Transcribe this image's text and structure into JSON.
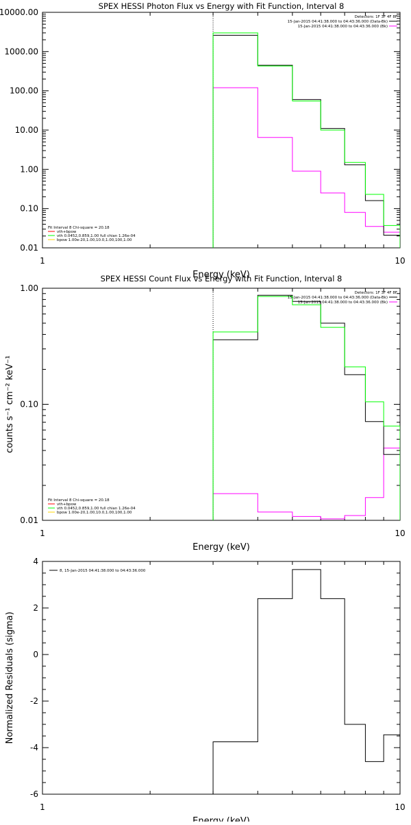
{
  "colors": {
    "background": "#ffffff",
    "axes": "#000000",
    "data": "#000000",
    "fit_total": "#ff00ff",
    "vth": "#00ff00",
    "bpow": "#ffd700",
    "vth_bpow_label": "#ff0000"
  },
  "chart_data": [
    {
      "id": "photon",
      "type": "line",
      "title": "SPEX HESSI Photon Flux vs Energy with Fit Function, Interval 8",
      "xlabel": "Energy (keV)",
      "ylabel": "",
      "xscale": "log",
      "yscale": "log",
      "xlim": [
        1,
        10
      ],
      "ylim": [
        0.01,
        10000
      ],
      "xticks": [
        {
          "v": 1,
          "label": "1"
        },
        {
          "v": 10,
          "label": "10"
        }
      ],
      "yticks": [
        {
          "v": 0.01,
          "label": "0.01"
        },
        {
          "v": 0.1,
          "label": "0.10"
        },
        {
          "v": 1,
          "label": "1.00"
        },
        {
          "v": 10,
          "label": "10.00"
        },
        {
          "v": 100,
          "label": "100.00"
        },
        {
          "v": 1000,
          "label": "1000.00"
        },
        {
          "v": 10000,
          "label": "10000.00"
        }
      ],
      "vline_x": 3,
      "edges": [
        3,
        4,
        5,
        6,
        7,
        8,
        9,
        10
      ],
      "series": [
        {
          "key": "data",
          "values": [
            2600,
            450,
            60,
            11,
            1.3,
            0.16,
            0.021
          ]
        },
        {
          "key": "vth",
          "values": [
            3000,
            430,
            55,
            10,
            1.5,
            0.23,
            0.037
          ]
        },
        {
          "key": "fit_total",
          "values": [
            120,
            6.5,
            0.9,
            0.25,
            0.08,
            0.035,
            0.025
          ]
        }
      ],
      "legend_top": {
        "header": "Detectors: 1F 3F 4F 8F",
        "entries": [
          {
            "key": "data",
            "label": "15-Jan-2015 04:41:38.000 to 04:43:36.000 (Data-Bk)"
          },
          {
            "key": "fit_total",
            "label": "15-Jan-2015 04:41:38.000 to 04:43:36.000 (Bk)"
          }
        ]
      },
      "legend_bottom": {
        "header": "Fit Interval  8    Chi-square = 20.18",
        "entries": [
          {
            "key": "vth_bpow_label",
            "label": "vth+bpow"
          },
          {
            "key": "vth",
            "label": "vth 0.0452,0.859,1.00   full chian 1.26e-04"
          },
          {
            "key": "bpow",
            "label": "bpow 1.00e-20,1.00,10.0,1.00,100,1.00"
          }
        ]
      }
    },
    {
      "id": "count",
      "type": "line",
      "title": "SPEX HESSI Count Flux vs Energy with Fit Function, Interval 8",
      "xlabel": "Energy (keV)",
      "ylabel": "counts s⁻¹ cm⁻² keV⁻¹",
      "xscale": "log",
      "yscale": "log",
      "xlim": [
        1,
        10
      ],
      "ylim": [
        0.01,
        1
      ],
      "xticks": [
        {
          "v": 1,
          "label": "1"
        },
        {
          "v": 10,
          "label": "10"
        }
      ],
      "yticks": [
        {
          "v": 0.01,
          "label": "0.01"
        },
        {
          "v": 0.1,
          "label": "0.10"
        },
        {
          "v": 1,
          "label": "1.00"
        }
      ],
      "vline_x": 3,
      "edges": [
        3,
        4,
        5,
        6,
        7,
        8,
        9,
        10
      ],
      "series": [
        {
          "key": "data",
          "values": [
            0.36,
            0.87,
            0.77,
            0.5,
            0.18,
            0.071,
            0.037
          ]
        },
        {
          "key": "vth",
          "values": [
            0.42,
            0.85,
            0.72,
            0.46,
            0.21,
            0.105,
            0.065
          ]
        },
        {
          "key": "fit_total",
          "values": [
            0.017,
            0.0118,
            0.0108,
            0.0103,
            0.011,
            0.0157,
            0.042
          ]
        }
      ],
      "legend_top": {
        "header": "Detectors: 1F 3F 4F 8F",
        "entries": [
          {
            "key": "data",
            "label": "15-Jan-2015 04:41:38.000 to 04:43:36.000 (Data-Bk)"
          },
          {
            "key": "fit_total",
            "label": "15-Jan-2015 04:41:38.000 to 04:43:36.000 (Bk)"
          }
        ]
      },
      "legend_bottom": {
        "header": "Fit Interval  8    Chi-square = 20.18",
        "entries": [
          {
            "key": "vth_bpow_label",
            "label": "vth+bpow"
          },
          {
            "key": "vth",
            "label": "vth 0.0452,0.859,1.00   full chian 1.26e-04"
          },
          {
            "key": "bpow",
            "label": "bpow 1.00e-20,1.00,10.0,1.00,100,1.00"
          }
        ]
      }
    },
    {
      "id": "resid",
      "type": "line",
      "title": "",
      "xlabel": "Energy (keV)",
      "ylabel": "Normalized Residuals (sigma)",
      "xscale": "log",
      "yscale": "linear",
      "xlim": [
        1,
        10
      ],
      "ylim": [
        -6,
        4
      ],
      "xticks": [
        {
          "v": 1,
          "label": "1"
        },
        {
          "v": 10,
          "label": "10"
        }
      ],
      "yticks": [
        {
          "v": -6,
          "label": "-6"
        },
        {
          "v": -4,
          "label": "-4"
        },
        {
          "v": -2,
          "label": "-2"
        },
        {
          "v": 0,
          "label": "0"
        },
        {
          "v": 2,
          "label": "2"
        },
        {
          "v": 4,
          "label": "4"
        }
      ],
      "edges": [
        3,
        4,
        5,
        6,
        7,
        8,
        9,
        10
      ],
      "series": [
        {
          "key": "data",
          "values": [
            -3.75,
            2.4,
            3.65,
            2.4,
            -3.0,
            -4.6,
            -3.45
          ]
        }
      ],
      "legend_top": {
        "header": "",
        "entries": [
          {
            "key": "data",
            "label": "8, 15-Jan-2015 04:41:38.000 to 04:43:36.000"
          }
        ]
      }
    }
  ]
}
